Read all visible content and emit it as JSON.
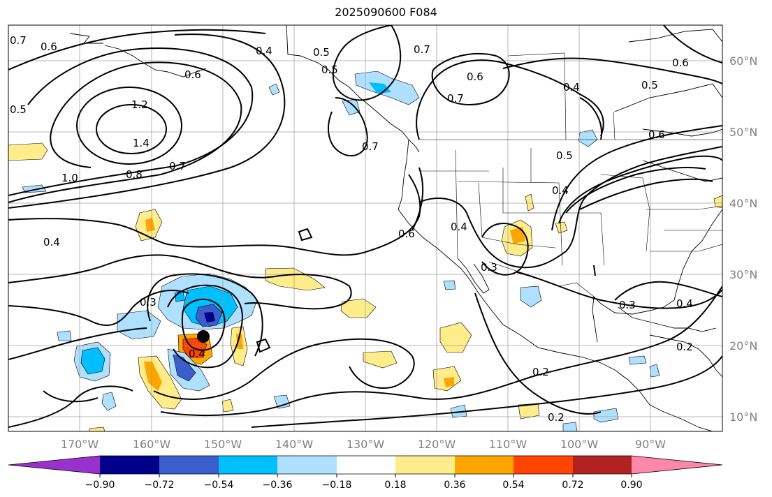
{
  "title": "2025090600 F084",
  "axes": {
    "lon_labels": [
      "170°W",
      "160°W",
      "150°W",
      "140°W",
      "130°W",
      "120°W",
      "110°W",
      "100°W",
      "90°W"
    ],
    "lat_labels": [
      "60°N",
      "50°N",
      "40°N",
      "30°N",
      "20°N",
      "10°N"
    ]
  },
  "colorbar": {
    "ticks": [
      "−0.90",
      "−0.72",
      "−0.54",
      "−0.36",
      "−0.18",
      "0.18",
      "0.36",
      "0.54",
      "0.72",
      "0.90"
    ],
    "colors": [
      "#9932cc",
      "#00008b",
      "#3a5fcd",
      "#00bfff",
      "#b0e0ff",
      "#ffffff",
      "#ffec8b",
      "#ffa500",
      "#ff4500",
      "#b22222",
      "#ff88aa"
    ]
  },
  "contour_labels": [
    "0.7",
    "0.6",
    "0.4",
    "0.5",
    "0.7",
    "0.6",
    "0.5",
    "0.6",
    "0.7",
    "0.4",
    "0.5",
    "0.6",
    "1.2",
    "1.4",
    "0.5",
    "0.7",
    "1.0",
    "0.8",
    "0.7",
    "0.5",
    "0.4",
    "0.6",
    "0.6",
    "0.4",
    "0.3",
    "0.4",
    "0.3",
    "0.3",
    "0.4",
    "0.2",
    "0.2",
    "0.2",
    "0.4"
  ]
}
